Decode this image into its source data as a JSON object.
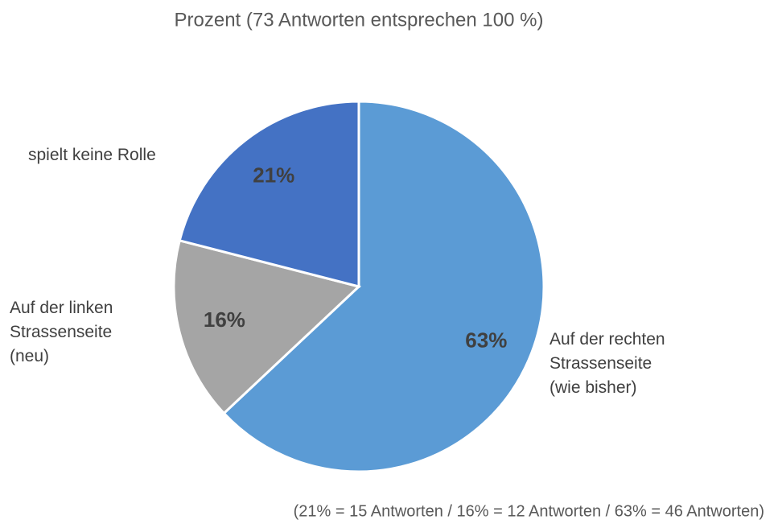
{
  "chart_data": {
    "type": "pie",
    "title": "Prozent (73 Antworten entsprechen 100 %)",
    "categories": [
      "Auf der rechten\nStrassenseite\n(wie bisher)",
      "Auf der linken\nStrassenseite\n(neu)",
      "spielt keine Rolle"
    ],
    "values": [
      63,
      16,
      21
    ],
    "value_labels": [
      "63%",
      "16%",
      "21%"
    ],
    "colors": [
      "#5b9bd5",
      "#a5a5a5",
      "#4472c4"
    ],
    "footnote": "(21% = 15 Antworten / 16% = 12 Antworten / 63% = 46 Antworten)"
  }
}
